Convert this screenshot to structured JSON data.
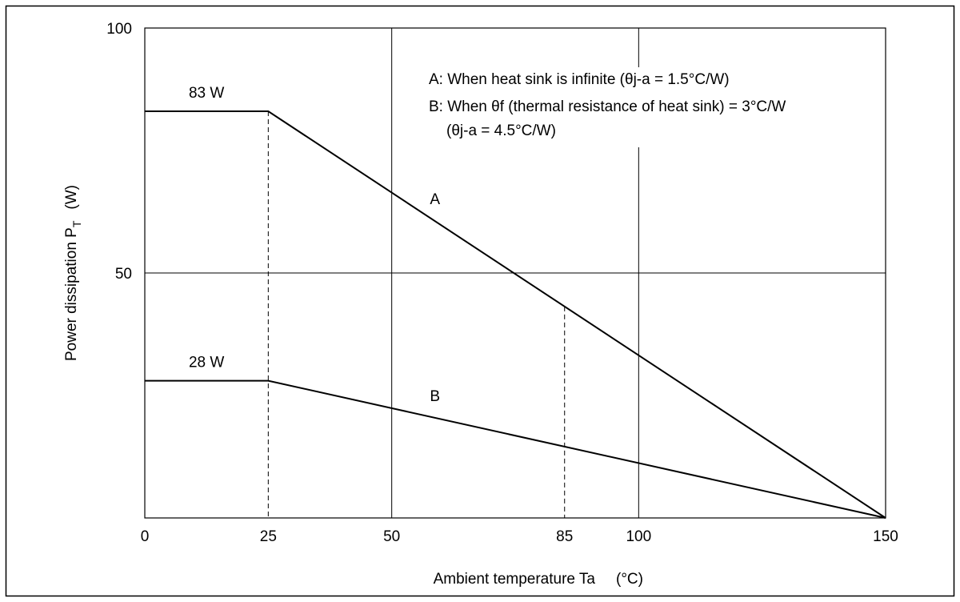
{
  "chart_data": {
    "type": "line",
    "x_label": "Ambient temperature Ta",
    "x_unit": "(°C)",
    "y_label": {
      "text": "Power dissipation P",
      "subscript": "T",
      "unit": "(W)"
    },
    "annotations": [
      "A: When heat sink is infinite (θj-a = 1.5°C/W)",
      "B: When θf (thermal resistance of heat sink) = 3°C/W",
      "(θj-a = 4.5°C/W)"
    ],
    "xlim": [
      0,
      150
    ],
    "ylim": [
      0,
      100
    ],
    "xticks": [
      0,
      25,
      50,
      85,
      100,
      150
    ],
    "yticks": [
      50,
      100
    ],
    "grid_x": [
      50,
      100
    ],
    "grid_y": [
      50
    ],
    "guides_x": [
      25,
      85
    ],
    "series": [
      {
        "name": "A",
        "color": "#000000",
        "x": [
          0,
          25,
          150
        ],
        "values": [
          83,
          83,
          0
        ],
        "value_labels": [
          "83 W",
          null,
          null
        ]
      },
      {
        "name": "B",
        "color": "#000000",
        "x": [
          0,
          25,
          150
        ],
        "values": [
          28,
          28,
          0
        ],
        "value_labels": [
          "28 W",
          null,
          null
        ]
      }
    ]
  }
}
